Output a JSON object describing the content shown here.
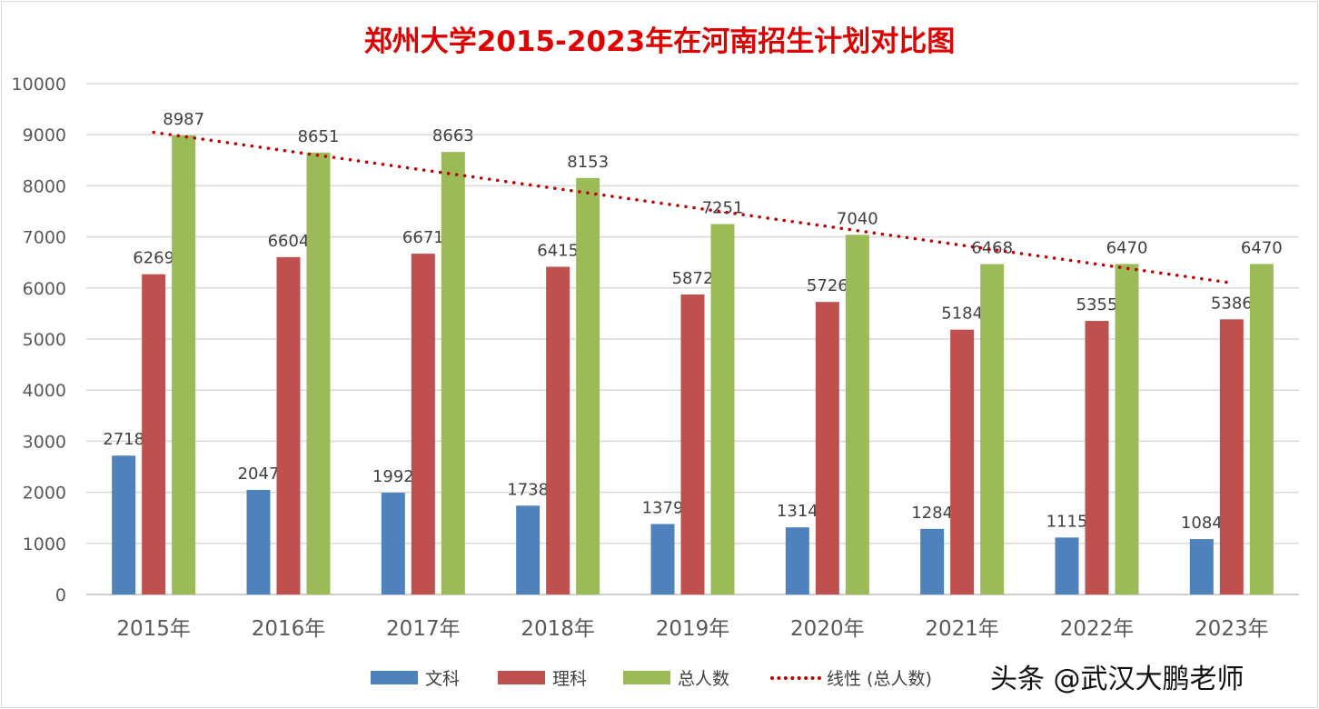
{
  "chart_data": {
    "type": "bar",
    "title": "郑州大学2015-2023年在河南招生计划对比图",
    "categories": [
      "2015年",
      "2016年",
      "2017年",
      "2018年",
      "2019年",
      "2020年",
      "2021年",
      "2022年",
      "2023年"
    ],
    "series": [
      {
        "name": "文科",
        "color": "#4f81bd",
        "values": [
          2718,
          2047,
          1992,
          1738,
          1379,
          1314,
          1284,
          1115,
          1084
        ]
      },
      {
        "name": "理科",
        "color": "#c0504d",
        "values": [
          6269,
          6604,
          6671,
          6415,
          5872,
          5726,
          5184,
          5355,
          5386
        ]
      },
      {
        "name": "总人数",
        "color": "#9bbb59",
        "values": [
          8987,
          8651,
          8663,
          8153,
          7251,
          7040,
          6468,
          6470,
          6470
        ]
      }
    ],
    "trendline": {
      "name": "线性 (总人数)",
      "type": "linear",
      "of_series": "总人数",
      "color": "#c00000",
      "style": "dotted"
    },
    "ylim": [
      0,
      10000
    ],
    "yticks": [
      0,
      1000,
      2000,
      3000,
      4000,
      5000,
      6000,
      7000,
      8000,
      9000,
      10000
    ],
    "grid": true,
    "legend": "bottom",
    "data_labels": true
  },
  "watermark": "头条 @武汉大鹏老师"
}
